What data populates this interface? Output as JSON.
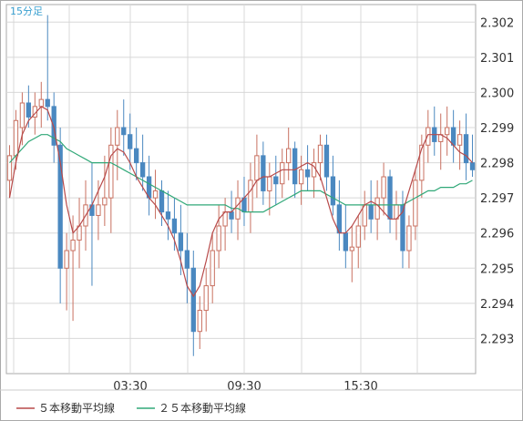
{
  "chart_data": {
    "type": "candlestick",
    "interval_label": "15分足",
    "x_tick_labels": [
      "03:30",
      "09:30",
      "15:30"
    ],
    "y_tick_labels": [
      "2.302",
      "2.301",
      "2.300",
      "2.299",
      "2.298",
      "2.297",
      "2.296",
      "2.295",
      "2.294",
      "2.293"
    ],
    "ylim": [
      2.292,
      2.3025
    ],
    "grid": true,
    "legend_position": "bottom-left",
    "colors": {
      "up_candle": "#c87060",
      "down_candle": "#4a88c0",
      "ma5": "#b84a4a",
      "ma25": "#30a878",
      "grid": "#d8d8d8",
      "frame": "#aaaaaa"
    },
    "series": [
      {
        "name": "５本移動平均線",
        "color": "#b84a4a"
      },
      {
        "name": "２５本移動平均線",
        "color": "#30a878"
      }
    ],
    "candles": [
      [
        2.2975,
        2.2985,
        2.297,
        2.2982
      ],
      [
        2.2982,
        2.2995,
        2.2978,
        2.2992
      ],
      [
        2.299,
        2.3,
        2.2985,
        2.2997
      ],
      [
        2.2997,
        2.3002,
        2.299,
        2.2993
      ],
      [
        2.2993,
        2.3,
        2.2988,
        2.2996
      ],
      [
        2.2996,
        2.3003,
        2.299,
        2.2998
      ],
      [
        2.2998,
        2.3022,
        2.2992,
        2.2996
      ],
      [
        2.2996,
        2.3,
        2.298,
        2.2985
      ],
      [
        2.2985,
        2.299,
        2.294,
        2.295
      ],
      [
        2.295,
        2.296,
        2.2938,
        2.2955
      ],
      [
        2.2955,
        2.2965,
        2.2935,
        2.2958
      ],
      [
        2.2958,
        2.297,
        2.295,
        2.2962
      ],
      [
        2.2962,
        2.2975,
        2.2955,
        2.2968
      ],
      [
        2.2968,
        2.298,
        2.2945,
        2.2965
      ],
      [
        2.2965,
        2.2975,
        2.2958,
        2.2968
      ],
      [
        2.2968,
        2.2982,
        2.2962,
        2.297
      ],
      [
        2.297,
        2.299,
        2.296,
        2.2985
      ],
      [
        2.2985,
        2.2995,
        2.2975,
        2.299
      ],
      [
        2.299,
        2.2998,
        2.2982,
        2.2988
      ],
      [
        2.2988,
        2.2994,
        2.2978,
        2.2984
      ],
      [
        2.2984,
        2.299,
        2.2975,
        2.298
      ],
      [
        2.298,
        2.2988,
        2.2972,
        2.2976
      ],
      [
        2.2976,
        2.2982,
        2.2965,
        2.297
      ],
      [
        2.297,
        2.2978,
        2.2964,
        2.2972
      ],
      [
        2.2972,
        2.2975,
        2.2962,
        2.2966
      ],
      [
        2.2966,
        2.2972,
        2.2958,
        2.2964
      ],
      [
        2.2964,
        2.297,
        2.2955,
        2.296
      ],
      [
        2.296,
        2.2968,
        2.2948,
        2.2955
      ],
      [
        2.2955,
        2.296,
        2.294,
        2.295
      ],
      [
        2.295,
        2.2955,
        2.2925,
        2.2932
      ],
      [
        2.2932,
        2.2942,
        2.2927,
        2.2938
      ],
      [
        2.2938,
        2.295,
        2.2932,
        2.2945
      ],
      [
        2.2945,
        2.296,
        2.294,
        2.2955
      ],
      [
        2.2955,
        2.2968,
        2.295,
        2.2962
      ],
      [
        2.2962,
        2.297,
        2.2955,
        2.2966
      ],
      [
        2.2966,
        2.2972,
        2.296,
        2.2964
      ],
      [
        2.2964,
        2.2975,
        2.2958,
        2.297
      ],
      [
        2.297,
        2.2976,
        2.2962,
        2.2966
      ],
      [
        2.2966,
        2.298,
        2.296,
        2.2975
      ],
      [
        2.2975,
        2.2988,
        2.297,
        2.2982
      ],
      [
        2.2982,
        2.2986,
        2.2968,
        2.2972
      ],
      [
        2.2972,
        2.298,
        2.2965,
        2.2976
      ],
      [
        2.2976,
        2.2982,
        2.2968,
        2.2974
      ],
      [
        2.2974,
        2.2984,
        2.297,
        2.298
      ],
      [
        2.298,
        2.299,
        2.2975,
        2.2984
      ],
      [
        2.2984,
        2.2986,
        2.297,
        2.2974
      ],
      [
        2.2974,
        2.2982,
        2.2968,
        2.2978
      ],
      [
        2.2978,
        2.2985,
        2.2972,
        2.2976
      ],
      [
        2.2976,
        2.2984,
        2.297,
        2.298
      ],
      [
        2.298,
        2.2988,
        2.2975,
        2.2985
      ],
      [
        2.2985,
        2.2988,
        2.2972,
        2.2976
      ],
      [
        2.2976,
        2.2982,
        2.2965,
        2.2968
      ],
      [
        2.2968,
        2.2975,
        2.2955,
        2.296
      ],
      [
        2.296,
        2.2968,
        2.295,
        2.2955
      ],
      [
        2.2955,
        2.2962,
        2.2946,
        2.2956
      ],
      [
        2.2956,
        2.2965,
        2.295,
        2.2962
      ],
      [
        2.2962,
        2.2972,
        2.2958,
        2.2968
      ],
      [
        2.2968,
        2.2975,
        2.296,
        2.2964
      ],
      [
        2.2964,
        2.2975,
        2.2958,
        2.297
      ],
      [
        2.297,
        2.298,
        2.2965,
        2.2976
      ],
      [
        2.2976,
        2.2978,
        2.296,
        2.2964
      ],
      [
        2.2964,
        2.2972,
        2.2958,
        2.2968
      ],
      [
        2.2968,
        2.2972,
        2.295,
        2.2955
      ],
      [
        2.2955,
        2.2965,
        2.295,
        2.2962
      ],
      [
        2.2962,
        2.2978,
        2.2958,
        2.2975
      ],
      [
        2.2975,
        2.2988,
        2.297,
        2.2985
      ],
      [
        2.2985,
        2.2995,
        2.298,
        2.299
      ],
      [
        2.299,
        2.2996,
        2.2982,
        2.2986
      ],
      [
        2.2986,
        2.2994,
        2.2978,
        2.2988
      ],
      [
        2.2988,
        2.2996,
        2.2982,
        2.299
      ],
      [
        2.299,
        2.2995,
        2.298,
        2.2985
      ],
      [
        2.2985,
        2.2992,
        2.2978,
        2.2988
      ],
      [
        2.2988,
        2.2994,
        2.2975,
        2.298
      ],
      [
        2.298,
        2.2988,
        2.2976,
        2.2978
      ]
    ],
    "ma5_values": [
      2.297,
      2.298,
      2.2988,
      2.2992,
      2.2994,
      2.2996,
      2.2995,
      2.299,
      2.298,
      2.2968,
      2.296,
      2.2962,
      2.2965,
      2.2968,
      2.2972,
      2.2976,
      2.2982,
      2.2984,
      2.2983,
      2.298,
      2.2976,
      2.2973,
      2.297,
      2.2968,
      2.2965,
      2.2962,
      2.2958,
      2.2952,
      2.2945,
      2.2942,
      2.2945,
      2.2952,
      2.296,
      2.2964,
      2.2966,
      2.2966,
      2.2968,
      2.297,
      2.2972,
      2.2975,
      2.2976,
      2.2976,
      2.2977,
      2.2978,
      2.2978,
      2.2978,
      2.2979,
      2.298,
      2.2979,
      2.2976,
      2.297,
      2.2964,
      2.296,
      2.296,
      2.2962,
      2.2965,
      2.2968,
      2.2969,
      2.2968,
      2.2966,
      2.2964,
      2.2964,
      2.2966,
      2.2972,
      2.2978,
      2.2984,
      2.2988,
      2.2988,
      2.2988,
      2.2987,
      2.2985,
      2.2983,
      2.2982,
      2.298
    ],
    "ma25_values": [
      2.298,
      2.2982,
      2.2984,
      2.2986,
      2.2987,
      2.2988,
      2.2988,
      2.2987,
      2.2986,
      2.2984,
      2.2983,
      2.2982,
      2.2981,
      2.298,
      2.298,
      2.298,
      2.298,
      2.2979,
      2.2978,
      2.2977,
      2.2976,
      2.2975,
      2.2974,
      2.2973,
      2.2972,
      2.2971,
      2.297,
      2.2969,
      2.2968,
      2.2968,
      2.2968,
      2.2968,
      2.2968,
      2.2968,
      2.2968,
      2.2967,
      2.2967,
      2.2966,
      2.2966,
      2.2966,
      2.2966,
      2.2967,
      2.2968,
      2.2969,
      2.297,
      2.2971,
      2.2972,
      2.2972,
      2.2972,
      2.2972,
      2.2971,
      2.297,
      2.2969,
      2.2968,
      2.2968,
      2.2968,
      2.2968,
      2.2968,
      2.2968,
      2.2968,
      2.2968,
      2.2968,
      2.2968,
      2.2969,
      2.297,
      2.2971,
      2.2972,
      2.2972,
      2.2973,
      2.2973,
      2.2973,
      2.2974,
      2.2974,
      2.2975
    ]
  }
}
